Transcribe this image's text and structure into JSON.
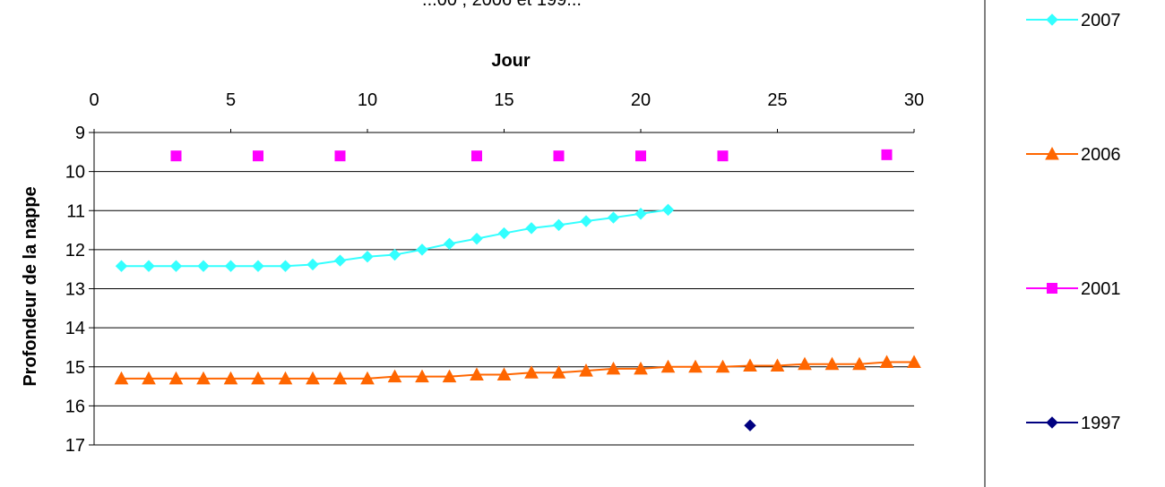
{
  "chart_data": {
    "type": "line",
    "title": "...00 , 2006 et 199...",
    "xlabel": "Jour",
    "ylabel": "Profondeur de la nappe",
    "xlim": [
      0,
      30
    ],
    "ylim": [
      9,
      17
    ],
    "y_inverted": true,
    "x_axis_position": "top",
    "x_ticks": [
      0,
      5,
      10,
      15,
      20,
      25,
      30
    ],
    "y_ticks": [
      9,
      10,
      11,
      12,
      13,
      14,
      15,
      16,
      17
    ],
    "grid": "horizontal",
    "legend_position": "right",
    "series": [
      {
        "name": "2007",
        "color": "#33FFFF",
        "marker": "diamond",
        "line": true,
        "x": [
          1,
          2,
          3,
          4,
          5,
          6,
          7,
          8,
          9,
          10,
          11,
          12,
          13,
          14,
          15,
          16,
          17,
          18,
          19,
          20,
          21
        ],
        "y": [
          12.42,
          12.42,
          12.42,
          12.42,
          12.42,
          12.42,
          12.42,
          12.38,
          12.28,
          12.18,
          12.13,
          12.0,
          11.85,
          11.72,
          11.58,
          11.45,
          11.37,
          11.27,
          11.18,
          11.08,
          10.98
        ]
      },
      {
        "name": "2006",
        "color": "#FF6600",
        "marker": "triangle",
        "line": true,
        "x": [
          1,
          2,
          3,
          4,
          5,
          6,
          7,
          8,
          9,
          10,
          11,
          12,
          13,
          14,
          15,
          16,
          17,
          18,
          19,
          20,
          21,
          22,
          23,
          24,
          25,
          26,
          27,
          28,
          29,
          30
        ],
        "y": [
          15.3,
          15.3,
          15.3,
          15.3,
          15.3,
          15.3,
          15.3,
          15.3,
          15.3,
          15.3,
          15.25,
          15.25,
          15.25,
          15.2,
          15.2,
          15.15,
          15.15,
          15.1,
          15.05,
          15.05,
          15.0,
          15.0,
          15.0,
          14.97,
          14.97,
          14.93,
          14.93,
          14.93,
          14.88,
          14.88
        ]
      },
      {
        "name": "2001",
        "color": "#FF00FF",
        "marker": "square",
        "line": false,
        "x": [
          3,
          6,
          9,
          14,
          17,
          20,
          23,
          29
        ],
        "y": [
          9.6,
          9.6,
          9.6,
          9.6,
          9.6,
          9.6,
          9.6,
          9.57
        ]
      },
      {
        "name": "1997",
        "color": "#000080",
        "marker": "diamond",
        "line": false,
        "x": [
          24
        ],
        "y": [
          16.5
        ]
      }
    ]
  }
}
